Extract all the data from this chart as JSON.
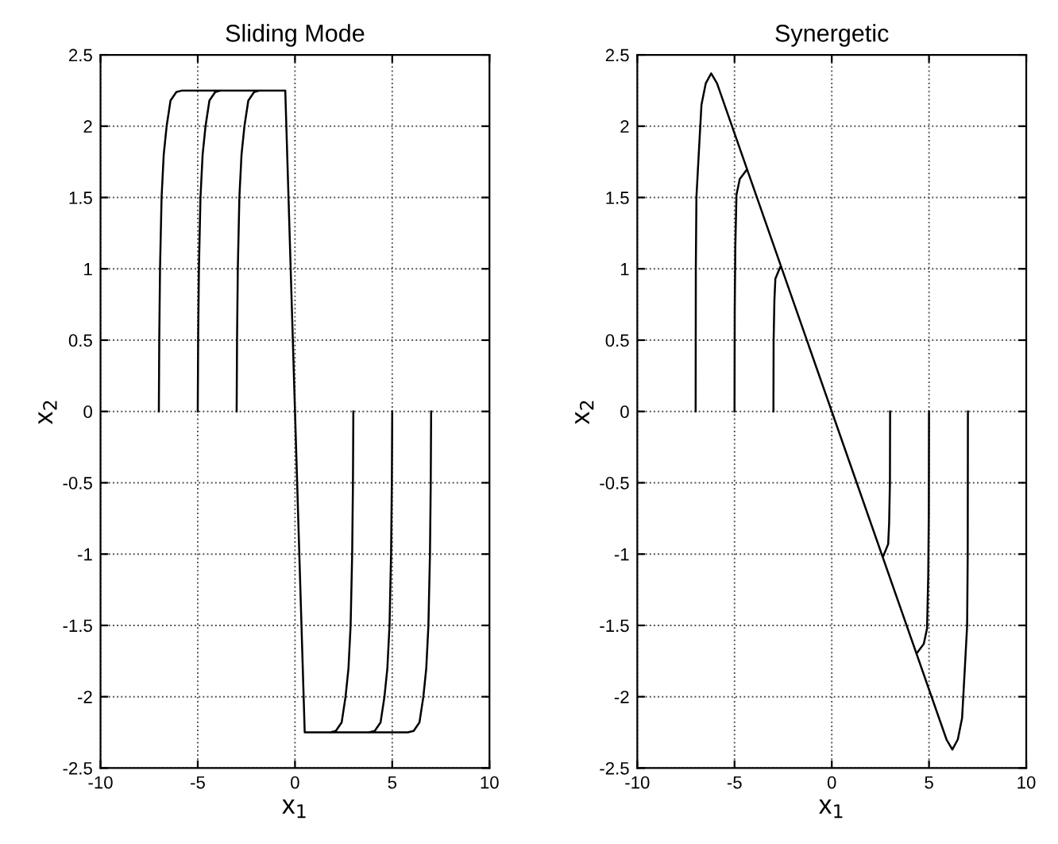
{
  "chart_data": [
    {
      "type": "line",
      "title": "Sliding Mode",
      "xlabel": "x$_{1}$",
      "ylabel": "x$_{2}$",
      "xlim": [
        -10,
        10
      ],
      "ylim": [
        -2.5,
        2.5
      ],
      "xticks": [
        -10,
        -5,
        0,
        5,
        10
      ],
      "yticks": [
        -2.5,
        -2,
        -1.5,
        -1,
        -0.5,
        0,
        0.5,
        1,
        1.5,
        2,
        2.5
      ],
      "grid": true,
      "line_style": "solid",
      "marker": "none",
      "series": [
        {
          "color": "#000000",
          "x": [
            -7,
            -6.98,
            -6.94,
            -6.86,
            -6.75,
            -6.6,
            -6.4,
            -6.1,
            -5.8,
            -0.5,
            0,
            null,
            -5,
            -4.98,
            -4.94,
            -4.86,
            -4.75,
            -4.6,
            -4.4,
            -4.1,
            -3.8,
            null,
            -3,
            -2.98,
            -2.94,
            -2.86,
            -2.75,
            -2.6,
            -2.4,
            -2.1,
            -1.8,
            null,
            7,
            6.98,
            6.94,
            6.86,
            6.75,
            6.6,
            6.4,
            6.1,
            5.8,
            0.5,
            0,
            null,
            5,
            4.98,
            4.94,
            4.86,
            4.75,
            4.6,
            4.4,
            4.1,
            3.8,
            null,
            3,
            2.98,
            2.94,
            2.86,
            2.75,
            2.6,
            2.4,
            2.1,
            1.8
          ],
          "values": [
            0,
            0.5,
            1,
            1.5,
            1.8,
            2.0,
            2.18,
            2.24,
            2.25,
            2.25,
            0,
            null,
            0,
            0.5,
            1,
            1.5,
            1.8,
            2.0,
            2.18,
            2.24,
            2.25,
            null,
            0,
            0.5,
            1,
            1.5,
            1.8,
            2.0,
            2.18,
            2.24,
            2.25,
            null,
            0,
            -0.5,
            -1,
            -1.5,
            -1.8,
            -2.0,
            -2.18,
            -2.24,
            -2.25,
            -2.25,
            0,
            null,
            0,
            -0.5,
            -1,
            -1.5,
            -1.8,
            -2.0,
            -2.18,
            -2.24,
            -2.25,
            null,
            0,
            -0.5,
            -1,
            -1.5,
            -1.8,
            -2.0,
            -2.18,
            -2.24,
            -2.25
          ]
        }
      ]
    },
    {
      "type": "line",
      "title": "Synergetic",
      "xlabel": "x$_{1}$",
      "ylabel": "x$_{2}$",
      "xlim": [
        -10,
        10
      ],
      "ylim": [
        -2.5,
        2.5
      ],
      "xticks": [
        -10,
        -5,
        0,
        5,
        10
      ],
      "yticks": [
        -2.5,
        -2,
        -1.5,
        -1,
        -0.5,
        0,
        0.5,
        1,
        1.5,
        2,
        2.5
      ],
      "grid": true,
      "line_style": "solid",
      "marker": "none",
      "series": [
        {
          "color": "#000000",
          "x": [
            -7,
            -6.99,
            -6.96,
            -6.85,
            -6.7,
            -6.48,
            -6.2,
            -5.9,
            0,
            5.9,
            6.2,
            6.48,
            6.7,
            6.85,
            6.96,
            6.99,
            7,
            null,
            -5,
            -4.99,
            -4.96,
            -4.9,
            -4.73,
            -4.4,
            null,
            -3,
            -2.99,
            -2.95,
            -2.9,
            -2.66,
            null,
            5,
            4.99,
            4.96,
            4.9,
            4.73,
            4.4,
            null,
            3,
            2.99,
            2.95,
            2.9,
            2.66
          ],
          "values": [
            0,
            1.0,
            1.5,
            1.78,
            2.15,
            2.3,
            2.37,
            2.3,
            0,
            -2.3,
            -2.37,
            -2.3,
            -2.15,
            -1.78,
            -1.5,
            -1.0,
            0,
            null,
            0,
            0.7,
            1.15,
            1.52,
            1.63,
            1.69,
            null,
            0,
            0.5,
            0.78,
            0.93,
            1.01,
            null,
            0,
            -0.7,
            -1.15,
            -1.52,
            -1.63,
            -1.69,
            null,
            0,
            -0.5,
            -0.78,
            -0.93,
            -1.01
          ]
        }
      ]
    }
  ]
}
